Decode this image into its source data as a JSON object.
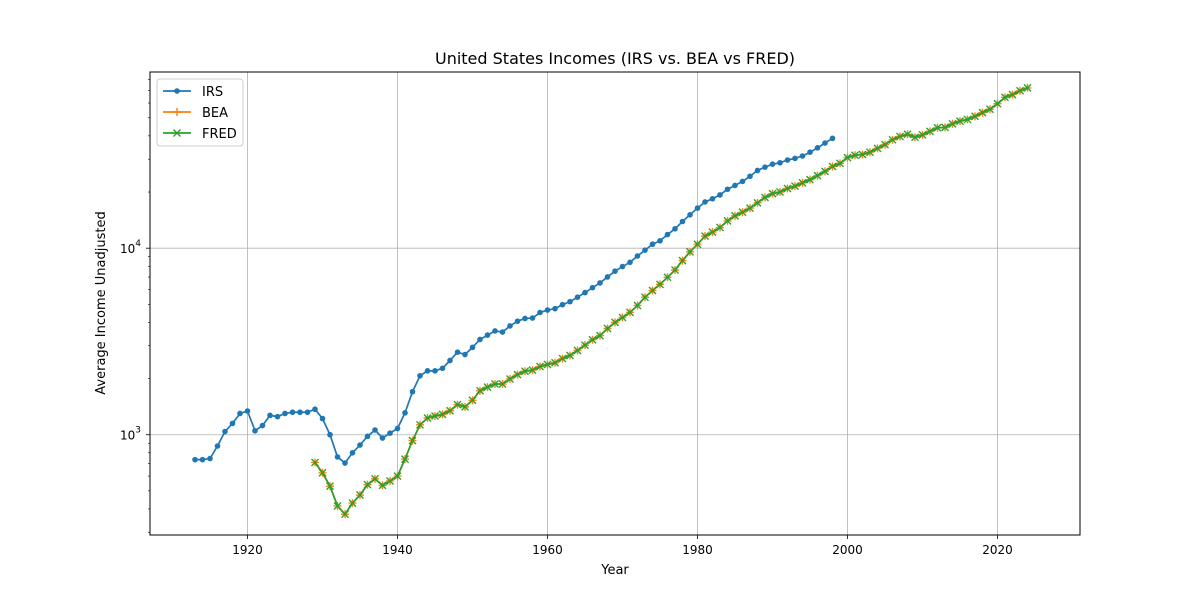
{
  "chart_data": {
    "type": "line",
    "title": "United States Incomes (IRS vs. BEA vs FRED)",
    "xlabel": "Year",
    "ylabel": "Average Income Unadjusted",
    "xlim": [
      1907,
      2031
    ],
    "ylim": [
      290,
      88000
    ],
    "yscale": "log",
    "grid": true,
    "legend": "top-left",
    "x_ticks": [
      1920,
      1940,
      1960,
      1980,
      2000,
      2020
    ],
    "y_ticks": [
      {
        "value": 1000,
        "base": "10",
        "exp": "3"
      },
      {
        "value": 10000,
        "base": "10",
        "exp": "4"
      }
    ],
    "series": [
      {
        "name": "IRS",
        "color": "#1f77b4",
        "marker": "dot",
        "points": [
          [
            1913,
            735
          ],
          [
            1914,
            735
          ],
          [
            1915,
            745
          ],
          [
            1916,
            870
          ],
          [
            1917,
            1040
          ],
          [
            1918,
            1150
          ],
          [
            1919,
            1300
          ],
          [
            1920,
            1340
          ],
          [
            1921,
            1050
          ],
          [
            1922,
            1120
          ],
          [
            1923,
            1270
          ],
          [
            1924,
            1250
          ],
          [
            1925,
            1300
          ],
          [
            1926,
            1320
          ],
          [
            1927,
            1320
          ],
          [
            1928,
            1320
          ],
          [
            1929,
            1370
          ],
          [
            1930,
            1220
          ],
          [
            1931,
            1000
          ],
          [
            1932,
            760
          ],
          [
            1933,
            705
          ],
          [
            1934,
            800
          ],
          [
            1935,
            880
          ],
          [
            1936,
            980
          ],
          [
            1937,
            1060
          ],
          [
            1938,
            960
          ],
          [
            1939,
            1020
          ],
          [
            1940,
            1080
          ],
          [
            1941,
            1310
          ],
          [
            1942,
            1700
          ],
          [
            1943,
            2070
          ],
          [
            1944,
            2200
          ],
          [
            1945,
            2200
          ],
          [
            1946,
            2270
          ],
          [
            1947,
            2500
          ],
          [
            1948,
            2770
          ],
          [
            1949,
            2690
          ],
          [
            1950,
            2940
          ],
          [
            1951,
            3240
          ],
          [
            1952,
            3420
          ],
          [
            1953,
            3600
          ],
          [
            1954,
            3550
          ],
          [
            1955,
            3830
          ],
          [
            1956,
            4060
          ],
          [
            1957,
            4200
          ],
          [
            1958,
            4220
          ],
          [
            1959,
            4520
          ],
          [
            1960,
            4660
          ],
          [
            1961,
            4740
          ],
          [
            1962,
            4980
          ],
          [
            1963,
            5170
          ],
          [
            1964,
            5460
          ],
          [
            1965,
            5780
          ],
          [
            1966,
            6140
          ],
          [
            1967,
            6510
          ],
          [
            1968,
            7010
          ],
          [
            1969,
            7530
          ],
          [
            1970,
            7970
          ],
          [
            1971,
            8400
          ],
          [
            1972,
            9080
          ],
          [
            1973,
            9760
          ],
          [
            1974,
            10500
          ],
          [
            1975,
            10950
          ],
          [
            1976,
            11830
          ],
          [
            1977,
            12700
          ],
          [
            1978,
            13900
          ],
          [
            1979,
            15100
          ],
          [
            1980,
            16400
          ],
          [
            1981,
            17700
          ],
          [
            1982,
            18400
          ],
          [
            1983,
            19300
          ],
          [
            1984,
            20700
          ],
          [
            1985,
            21700
          ],
          [
            1986,
            22800
          ],
          [
            1987,
            24300
          ],
          [
            1988,
            26100
          ],
          [
            1989,
            27200
          ],
          [
            1990,
            28200
          ],
          [
            1991,
            28700
          ],
          [
            1992,
            29700
          ],
          [
            1993,
            30300
          ],
          [
            1994,
            31200
          ],
          [
            1995,
            32700
          ],
          [
            1996,
            34500
          ],
          [
            1997,
            36600
          ],
          [
            1998,
            38800
          ]
        ]
      },
      {
        "name": "BEA",
        "color": "#ff7f0e",
        "marker": "plus",
        "points": [
          [
            1929,
            710
          ],
          [
            1930,
            625
          ],
          [
            1931,
            530
          ],
          [
            1932,
            415
          ],
          [
            1933,
            375
          ],
          [
            1934,
            430
          ],
          [
            1935,
            475
          ],
          [
            1936,
            540
          ],
          [
            1937,
            580
          ],
          [
            1938,
            535
          ],
          [
            1939,
            565
          ],
          [
            1940,
            600
          ],
          [
            1941,
            740
          ],
          [
            1942,
            930
          ],
          [
            1943,
            1130
          ],
          [
            1944,
            1230
          ],
          [
            1945,
            1260
          ],
          [
            1946,
            1285
          ],
          [
            1947,
            1345
          ],
          [
            1948,
            1450
          ],
          [
            1949,
            1410
          ],
          [
            1950,
            1530
          ],
          [
            1951,
            1720
          ],
          [
            1952,
            1800
          ],
          [
            1953,
            1870
          ],
          [
            1954,
            1870
          ],
          [
            1955,
            1990
          ],
          [
            1956,
            2100
          ],
          [
            1957,
            2190
          ],
          [
            1958,
            2220
          ],
          [
            1959,
            2320
          ],
          [
            1960,
            2380
          ],
          [
            1961,
            2430
          ],
          [
            1962,
            2560
          ],
          [
            1963,
            2660
          ],
          [
            1964,
            2830
          ],
          [
            1965,
            3020
          ],
          [
            1966,
            3230
          ],
          [
            1967,
            3400
          ],
          [
            1968,
            3710
          ],
          [
            1969,
            4000
          ],
          [
            1970,
            4250
          ],
          [
            1971,
            4530
          ],
          [
            1972,
            4930
          ],
          [
            1973,
            5460
          ],
          [
            1974,
            5930
          ],
          [
            1975,
            6400
          ],
          [
            1976,
            6980
          ],
          [
            1977,
            7640
          ],
          [
            1978,
            8580
          ],
          [
            1979,
            9560
          ],
          [
            1980,
            10500
          ],
          [
            1981,
            11600
          ],
          [
            1982,
            12200
          ],
          [
            1983,
            12900
          ],
          [
            1984,
            14000
          ],
          [
            1985,
            14900
          ],
          [
            1986,
            15600
          ],
          [
            1987,
            16400
          ],
          [
            1988,
            17500
          ],
          [
            1989,
            18700
          ],
          [
            1990,
            19600
          ],
          [
            1991,
            20000
          ],
          [
            1992,
            20900
          ],
          [
            1993,
            21500
          ],
          [
            1994,
            22400
          ],
          [
            1995,
            23300
          ],
          [
            1996,
            24500
          ],
          [
            1997,
            25800
          ],
          [
            1998,
            27400
          ],
          [
            1999,
            28500
          ],
          [
            2000,
            30600
          ],
          [
            2001,
            31500
          ],
          [
            2002,
            31800
          ],
          [
            2003,
            32700
          ],
          [
            2004,
            34300
          ],
          [
            2005,
            35900
          ],
          [
            2006,
            38100
          ],
          [
            2007,
            39700
          ],
          [
            2008,
            40800
          ],
          [
            2009,
            39300
          ],
          [
            2010,
            40500
          ],
          [
            2011,
            42300
          ],
          [
            2012,
            44200
          ],
          [
            2013,
            44400
          ],
          [
            2014,
            46400
          ],
          [
            2015,
            48000
          ],
          [
            2016,
            49000
          ],
          [
            2017,
            50900
          ],
          [
            2018,
            53300
          ],
          [
            2019,
            55600
          ],
          [
            2020,
            59500
          ],
          [
            2021,
            64300
          ],
          [
            2022,
            66600
          ],
          [
            2023,
            69800
          ],
          [
            2024,
            72300
          ]
        ]
      },
      {
        "name": "FRED",
        "color": "#2ca02c",
        "marker": "x",
        "points": [
          [
            1929,
            710
          ],
          [
            1930,
            625
          ],
          [
            1931,
            530
          ],
          [
            1932,
            415
          ],
          [
            1933,
            375
          ],
          [
            1934,
            430
          ],
          [
            1935,
            475
          ],
          [
            1936,
            540
          ],
          [
            1937,
            580
          ],
          [
            1938,
            535
          ],
          [
            1939,
            565
          ],
          [
            1940,
            600
          ],
          [
            1941,
            740
          ],
          [
            1942,
            930
          ],
          [
            1943,
            1130
          ],
          [
            1944,
            1230
          ],
          [
            1945,
            1260
          ],
          [
            1946,
            1285
          ],
          [
            1947,
            1345
          ],
          [
            1948,
            1450
          ],
          [
            1949,
            1410
          ],
          [
            1950,
            1530
          ],
          [
            1951,
            1720
          ],
          [
            1952,
            1800
          ],
          [
            1953,
            1870
          ],
          [
            1954,
            1870
          ],
          [
            1955,
            1990
          ],
          [
            1956,
            2100
          ],
          [
            1957,
            2190
          ],
          [
            1958,
            2220
          ],
          [
            1959,
            2320
          ],
          [
            1960,
            2380
          ],
          [
            1961,
            2430
          ],
          [
            1962,
            2560
          ],
          [
            1963,
            2660
          ],
          [
            1964,
            2830
          ],
          [
            1965,
            3020
          ],
          [
            1966,
            3230
          ],
          [
            1967,
            3400
          ],
          [
            1968,
            3710
          ],
          [
            1969,
            4000
          ],
          [
            1970,
            4250
          ],
          [
            1971,
            4530
          ],
          [
            1972,
            4930
          ],
          [
            1973,
            5460
          ],
          [
            1974,
            5930
          ],
          [
            1975,
            6400
          ],
          [
            1976,
            6980
          ],
          [
            1977,
            7640
          ],
          [
            1978,
            8580
          ],
          [
            1979,
            9560
          ],
          [
            1980,
            10500
          ],
          [
            1981,
            11600
          ],
          [
            1982,
            12200
          ],
          [
            1983,
            12900
          ],
          [
            1984,
            14000
          ],
          [
            1985,
            14900
          ],
          [
            1986,
            15600
          ],
          [
            1987,
            16400
          ],
          [
            1988,
            17500
          ],
          [
            1989,
            18700
          ],
          [
            1990,
            19600
          ],
          [
            1991,
            20000
          ],
          [
            1992,
            20900
          ],
          [
            1993,
            21500
          ],
          [
            1994,
            22400
          ],
          [
            1995,
            23300
          ],
          [
            1996,
            24500
          ],
          [
            1997,
            25800
          ],
          [
            1998,
            27400
          ],
          [
            1999,
            28500
          ],
          [
            2000,
            30600
          ],
          [
            2001,
            31500
          ],
          [
            2002,
            31800
          ],
          [
            2003,
            32700
          ],
          [
            2004,
            34300
          ],
          [
            2005,
            35900
          ],
          [
            2006,
            38100
          ],
          [
            2007,
            39700
          ],
          [
            2008,
            40800
          ],
          [
            2009,
            39300
          ],
          [
            2010,
            40500
          ],
          [
            2011,
            42300
          ],
          [
            2012,
            44200
          ],
          [
            2013,
            44400
          ],
          [
            2014,
            46400
          ],
          [
            2015,
            48000
          ],
          [
            2016,
            49000
          ],
          [
            2017,
            50900
          ],
          [
            2018,
            53300
          ],
          [
            2019,
            55600
          ],
          [
            2020,
            59500
          ],
          [
            2021,
            64300
          ],
          [
            2022,
            66600
          ],
          [
            2023,
            69800
          ],
          [
            2024,
            72300
          ]
        ]
      }
    ]
  }
}
